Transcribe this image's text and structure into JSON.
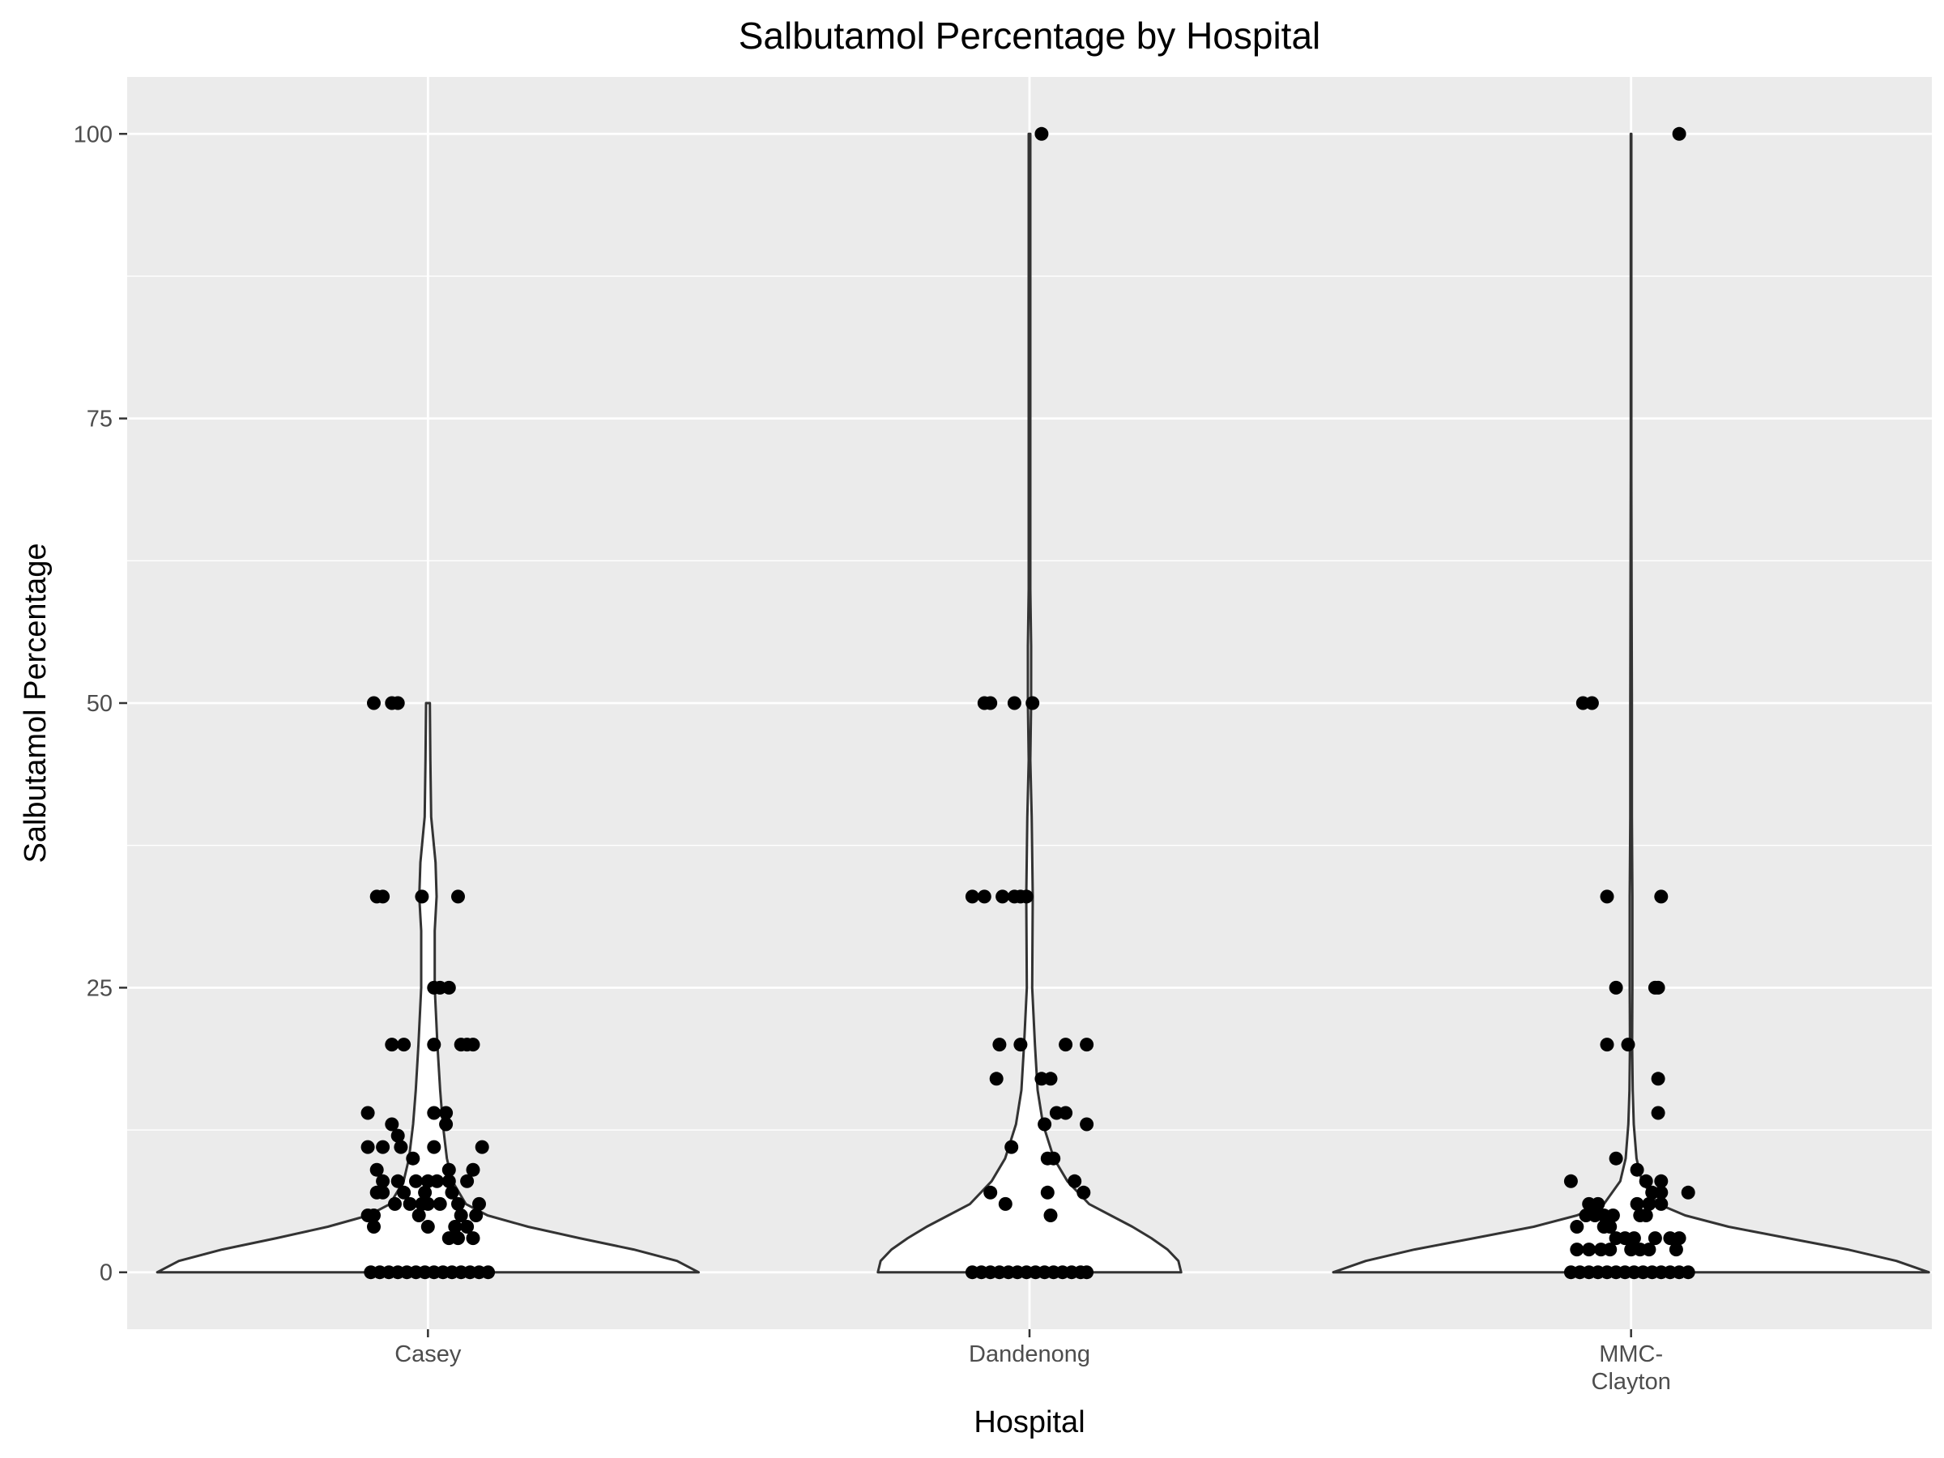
{
  "chart_data": {
    "type": "violin",
    "title": "Salbutamol Percentage by Hospital",
    "xlabel": "Hospital",
    "ylabel": "Salbutamol Percentage",
    "ylim": [
      -5,
      105
    ],
    "yticks": [
      0,
      25,
      50,
      75,
      100
    ],
    "ytick_labels": [
      "0",
      "25",
      "50",
      "75",
      "100"
    ],
    "grid": true,
    "legend": "none",
    "colors": {
      "panel": "#ebebeb",
      "grid": "#ffffff",
      "violin_fill": "#ffffff",
      "violin_outline": "#333333",
      "points": "#000000"
    },
    "categories": [
      "Casey",
      "Dandenong",
      "MMC-Clayton"
    ],
    "category_labels": [
      [
        "Casey"
      ],
      [
        "Dandenong"
      ],
      [
        "MMC-",
        "Clayton"
      ]
    ],
    "violins": [
      {
        "category": "Casey",
        "profile": [
          [
            0,
            1.0
          ],
          [
            1,
            0.92
          ],
          [
            2,
            0.76
          ],
          [
            3,
            0.56
          ],
          [
            4,
            0.37
          ],
          [
            5,
            0.22
          ],
          [
            6,
            0.14
          ],
          [
            8,
            0.09
          ],
          [
            10,
            0.07
          ],
          [
            13,
            0.055
          ],
          [
            16,
            0.045
          ],
          [
            20,
            0.035
          ],
          [
            25,
            0.025
          ],
          [
            30,
            0.025
          ],
          [
            33,
            0.032
          ],
          [
            36,
            0.028
          ],
          [
            40,
            0.012
          ],
          [
            45,
            0.009
          ],
          [
            50,
            0.007
          ]
        ]
      },
      {
        "category": "Dandenong",
        "profile": [
          [
            0,
            0.56
          ],
          [
            1,
            0.55
          ],
          [
            2,
            0.51
          ],
          [
            3,
            0.45
          ],
          [
            4,
            0.38
          ],
          [
            5,
            0.3
          ],
          [
            6,
            0.22
          ],
          [
            8,
            0.14
          ],
          [
            10,
            0.09
          ],
          [
            13,
            0.05
          ],
          [
            16,
            0.03
          ],
          [
            20,
            0.02
          ],
          [
            25,
            0.01
          ],
          [
            33,
            0.012
          ],
          [
            40,
            0.008
          ],
          [
            45,
            0.003
          ],
          [
            50,
            0.006
          ],
          [
            55,
            0.006
          ],
          [
            60,
            0.003
          ],
          [
            70,
            0.003
          ],
          [
            80,
            0.003
          ],
          [
            90,
            0.003
          ],
          [
            100,
            0.003
          ]
        ]
      },
      {
        "category": "MMC-Clayton",
        "profile": [
          [
            0,
            1.1
          ],
          [
            1,
            0.98
          ],
          [
            2,
            0.8
          ],
          [
            3,
            0.58
          ],
          [
            4,
            0.36
          ],
          [
            5,
            0.2
          ],
          [
            6,
            0.1
          ],
          [
            8,
            0.04
          ],
          [
            10,
            0.02
          ],
          [
            13,
            0.01
          ],
          [
            16,
            0.006
          ],
          [
            20,
            0.004
          ],
          [
            25,
            0.005
          ],
          [
            33,
            0.005
          ],
          [
            40,
            0.003
          ],
          [
            50,
            0.003
          ],
          [
            60,
            0.002
          ],
          [
            70,
            0.001
          ],
          [
            80,
            0.001
          ],
          [
            90,
            0.001
          ],
          [
            100,
            0.001
          ]
        ]
      }
    ],
    "points": [
      {
        "category": "Casey",
        "values": [
          {
            "y": 50,
            "j": -0.09
          },
          {
            "y": 50,
            "j": -0.06
          },
          {
            "y": 50,
            "j": -0.05
          },
          {
            "y": 33,
            "j": -0.085
          },
          {
            "y": 33,
            "j": -0.075
          },
          {
            "y": 33,
            "j": -0.01
          },
          {
            "y": 33,
            "j": 0.05
          },
          {
            "y": 25,
            "j": 0.01
          },
          {
            "y": 25,
            "j": 0.02
          },
          {
            "y": 25,
            "j": 0.035
          },
          {
            "y": 20,
            "j": -0.06
          },
          {
            "y": 20,
            "j": -0.04
          },
          {
            "y": 20,
            "j": 0.01
          },
          {
            "y": 20,
            "j": 0.055
          },
          {
            "y": 20,
            "j": 0.065
          },
          {
            "y": 20,
            "j": 0.075
          },
          {
            "y": 14,
            "j": -0.1
          },
          {
            "y": 14,
            "j": 0.01
          },
          {
            "y": 14,
            "j": 0.03
          },
          {
            "y": 13,
            "j": -0.06
          },
          {
            "y": 13,
            "j": 0.03
          },
          {
            "y": 12,
            "j": -0.05
          },
          {
            "y": 11,
            "j": -0.1
          },
          {
            "y": 11,
            "j": -0.075
          },
          {
            "y": 11,
            "j": -0.045
          },
          {
            "y": 11,
            "j": 0.01
          },
          {
            "y": 11,
            "j": 0.09
          },
          {
            "y": 10,
            "j": -0.025
          },
          {
            "y": 9,
            "j": -0.085
          },
          {
            "y": 9,
            "j": 0.035
          },
          {
            "y": 9,
            "j": 0.075
          },
          {
            "y": 8,
            "j": -0.075
          },
          {
            "y": 8,
            "j": -0.05
          },
          {
            "y": 8,
            "j": -0.02
          },
          {
            "y": 8,
            "j": 0.0
          },
          {
            "y": 8,
            "j": 0.015
          },
          {
            "y": 8,
            "j": 0.035
          },
          {
            "y": 8,
            "j": 0.065
          },
          {
            "y": 7,
            "j": -0.085
          },
          {
            "y": 7,
            "j": -0.075
          },
          {
            "y": 7,
            "j": -0.04
          },
          {
            "y": 7,
            "j": -0.005
          },
          {
            "y": 7,
            "j": 0.04
          },
          {
            "y": 6,
            "j": -0.055
          },
          {
            "y": 6,
            "j": -0.03
          },
          {
            "y": 6,
            "j": -0.01
          },
          {
            "y": 6,
            "j": 0.0
          },
          {
            "y": 6,
            "j": 0.02
          },
          {
            "y": 6,
            "j": 0.05
          },
          {
            "y": 6,
            "j": 0.085
          },
          {
            "y": 5,
            "j": -0.1
          },
          {
            "y": 5,
            "j": -0.09
          },
          {
            "y": 5,
            "j": -0.015
          },
          {
            "y": 5,
            "j": 0.055
          },
          {
            "y": 5,
            "j": 0.08
          },
          {
            "y": 4,
            "j": -0.09
          },
          {
            "y": 4,
            "j": 0.0
          },
          {
            "y": 4,
            "j": 0.045
          },
          {
            "y": 4,
            "j": 0.065
          },
          {
            "y": 3,
            "j": 0.035
          },
          {
            "y": 3,
            "j": 0.05
          },
          {
            "y": 3,
            "j": 0.075
          },
          {
            "y": 0,
            "j": -0.095
          },
          {
            "y": 0,
            "j": -0.08
          },
          {
            "y": 0,
            "j": -0.065
          },
          {
            "y": 0,
            "j": -0.05
          },
          {
            "y": 0,
            "j": -0.035
          },
          {
            "y": 0,
            "j": -0.02
          },
          {
            "y": 0,
            "j": -0.005
          },
          {
            "y": 0,
            "j": 0.01
          },
          {
            "y": 0,
            "j": 0.025
          },
          {
            "y": 0,
            "j": 0.04
          },
          {
            "y": 0,
            "j": 0.055
          },
          {
            "y": 0,
            "j": 0.07
          },
          {
            "y": 0,
            "j": 0.085
          },
          {
            "y": 0,
            "j": 0.1
          }
        ]
      },
      {
        "category": "Dandenong",
        "values": [
          {
            "y": 100,
            "j": 0.02
          },
          {
            "y": 50,
            "j": -0.075
          },
          {
            "y": 50,
            "j": -0.065
          },
          {
            "y": 50,
            "j": -0.025
          },
          {
            "y": 50,
            "j": 0.005
          },
          {
            "y": 33,
            "j": -0.095
          },
          {
            "y": 33,
            "j": -0.075
          },
          {
            "y": 33,
            "j": -0.045
          },
          {
            "y": 33,
            "j": -0.025
          },
          {
            "y": 33,
            "j": -0.015
          },
          {
            "y": 33,
            "j": -0.005
          },
          {
            "y": 20,
            "j": -0.05
          },
          {
            "y": 20,
            "j": -0.015
          },
          {
            "y": 20,
            "j": 0.06
          },
          {
            "y": 20,
            "j": 0.095
          },
          {
            "y": 17,
            "j": -0.055
          },
          {
            "y": 17,
            "j": 0.02
          },
          {
            "y": 17,
            "j": 0.035
          },
          {
            "y": 14,
            "j": 0.045
          },
          {
            "y": 14,
            "j": 0.06
          },
          {
            "y": 13,
            "j": 0.025
          },
          {
            "y": 13,
            "j": 0.095
          },
          {
            "y": 11,
            "j": -0.03
          },
          {
            "y": 10,
            "j": 0.03
          },
          {
            "y": 10,
            "j": 0.04
          },
          {
            "y": 8,
            "j": 0.075
          },
          {
            "y": 7,
            "j": -0.065
          },
          {
            "y": 7,
            "j": 0.03
          },
          {
            "y": 7,
            "j": 0.09
          },
          {
            "y": 6,
            "j": -0.04
          },
          {
            "y": 5,
            "j": 0.035
          },
          {
            "y": 0,
            "j": -0.095
          },
          {
            "y": 0,
            "j": -0.08
          },
          {
            "y": 0,
            "j": -0.065
          },
          {
            "y": 0,
            "j": -0.05
          },
          {
            "y": 0,
            "j": -0.035
          },
          {
            "y": 0,
            "j": -0.02
          },
          {
            "y": 0,
            "j": -0.005
          },
          {
            "y": 0,
            "j": 0.01
          },
          {
            "y": 0,
            "j": 0.025
          },
          {
            "y": 0,
            "j": 0.04
          },
          {
            "y": 0,
            "j": 0.055
          },
          {
            "y": 0,
            "j": 0.07
          },
          {
            "y": 0,
            "j": 0.085
          },
          {
            "y": 0,
            "j": 0.095
          }
        ]
      },
      {
        "category": "MMC-Clayton",
        "values": [
          {
            "y": 100,
            "j": 0.08
          },
          {
            "y": 50,
            "j": -0.08
          },
          {
            "y": 50,
            "j": -0.065
          },
          {
            "y": 33,
            "j": -0.04
          },
          {
            "y": 33,
            "j": 0.05
          },
          {
            "y": 25,
            "j": -0.025
          },
          {
            "y": 25,
            "j": 0.04
          },
          {
            "y": 25,
            "j": 0.045
          },
          {
            "y": 20,
            "j": -0.04
          },
          {
            "y": 20,
            "j": -0.005
          },
          {
            "y": 17,
            "j": 0.045
          },
          {
            "y": 14,
            "j": 0.045
          },
          {
            "y": 10,
            "j": -0.025
          },
          {
            "y": 9,
            "j": 0.01
          },
          {
            "y": 8,
            "j": -0.1
          },
          {
            "y": 8,
            "j": 0.025
          },
          {
            "y": 8,
            "j": 0.05
          },
          {
            "y": 7,
            "j": 0.035
          },
          {
            "y": 7,
            "j": 0.05
          },
          {
            "y": 7,
            "j": 0.095
          },
          {
            "y": 6,
            "j": -0.07
          },
          {
            "y": 6,
            "j": -0.055
          },
          {
            "y": 6,
            "j": 0.01
          },
          {
            "y": 6,
            "j": 0.03
          },
          {
            "y": 6,
            "j": 0.05
          },
          {
            "y": 5,
            "j": -0.075
          },
          {
            "y": 5,
            "j": -0.06
          },
          {
            "y": 5,
            "j": -0.045
          },
          {
            "y": 5,
            "j": -0.03
          },
          {
            "y": 5,
            "j": 0.015
          },
          {
            "y": 5,
            "j": 0.025
          },
          {
            "y": 4,
            "j": -0.09
          },
          {
            "y": 4,
            "j": -0.045
          },
          {
            "y": 4,
            "j": -0.035
          },
          {
            "y": 3,
            "j": -0.025
          },
          {
            "y": 3,
            "j": -0.01
          },
          {
            "y": 3,
            "j": 0.005
          },
          {
            "y": 3,
            "j": 0.04
          },
          {
            "y": 3,
            "j": 0.065
          },
          {
            "y": 3,
            "j": 0.08
          },
          {
            "y": 2,
            "j": -0.09
          },
          {
            "y": 2,
            "j": -0.07
          },
          {
            "y": 2,
            "j": -0.05
          },
          {
            "y": 2,
            "j": -0.035
          },
          {
            "y": 2,
            "j": 0.0
          },
          {
            "y": 2,
            "j": 0.015
          },
          {
            "y": 2,
            "j": 0.03
          },
          {
            "y": 2,
            "j": 0.075
          },
          {
            "y": 0,
            "j": -0.1
          },
          {
            "y": 0,
            "j": -0.085
          },
          {
            "y": 0,
            "j": -0.07
          },
          {
            "y": 0,
            "j": -0.055
          },
          {
            "y": 0,
            "j": -0.04
          },
          {
            "y": 0,
            "j": -0.025
          },
          {
            "y": 0,
            "j": -0.01
          },
          {
            "y": 0,
            "j": 0.005
          },
          {
            "y": 0,
            "j": 0.02
          },
          {
            "y": 0,
            "j": 0.035
          },
          {
            "y": 0,
            "j": 0.05
          },
          {
            "y": 0,
            "j": 0.065
          },
          {
            "y": 0,
            "j": 0.08
          },
          {
            "y": 0,
            "j": 0.095
          }
        ]
      }
    ]
  }
}
